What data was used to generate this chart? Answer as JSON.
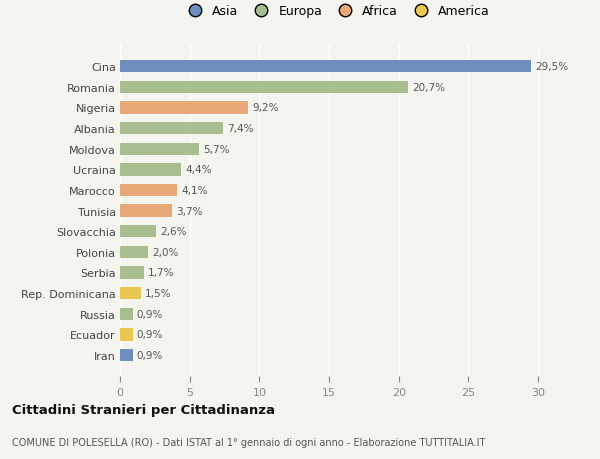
{
  "countries": [
    "Cina",
    "Romania",
    "Nigeria",
    "Albania",
    "Moldova",
    "Ucraina",
    "Marocco",
    "Tunisia",
    "Slovacchia",
    "Polonia",
    "Serbia",
    "Rep. Dominicana",
    "Russia",
    "Ecuador",
    "Iran"
  ],
  "values": [
    29.5,
    20.7,
    9.2,
    7.4,
    5.7,
    4.4,
    4.1,
    3.7,
    2.6,
    2.0,
    1.7,
    1.5,
    0.9,
    0.9,
    0.9
  ],
  "labels": [
    "29,5%",
    "20,7%",
    "9,2%",
    "7,4%",
    "5,7%",
    "4,4%",
    "4,1%",
    "3,7%",
    "2,6%",
    "2,0%",
    "1,7%",
    "1,5%",
    "0,9%",
    "0,9%",
    "0,9%"
  ],
  "colors": [
    "#6e8fbe",
    "#a8be90",
    "#e8a878",
    "#a8be90",
    "#a8be90",
    "#a8be90",
    "#e8a878",
    "#e8a878",
    "#a8be90",
    "#a8be90",
    "#a8be90",
    "#e8c850",
    "#a8be90",
    "#e8c850",
    "#6e8fbe"
  ],
  "legend_labels": [
    "Asia",
    "Europa",
    "Africa",
    "America"
  ],
  "legend_colors": [
    "#6e8fbe",
    "#a8be90",
    "#e8a878",
    "#e8c850"
  ],
  "xlim": [
    0,
    31
  ],
  "xticks": [
    0,
    5,
    10,
    15,
    20,
    25,
    30
  ],
  "title": "Cittadini Stranieri per Cittadinanza",
  "subtitle": "COMUNE DI POLESELLA (RO) - Dati ISTAT al 1° gennaio di ogni anno - Elaborazione TUTTITALIA.IT",
  "background_color": "#f5f5f0",
  "bar_height": 0.6
}
